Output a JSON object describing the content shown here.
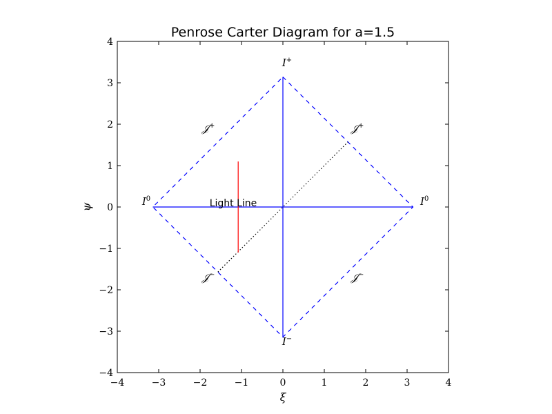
{
  "chart_data": {
    "type": "line",
    "title": "Penrose Carter Diagram for a=1.5",
    "xlabel": "ξ",
    "ylabel": "ψ",
    "xlim": [
      -4,
      4
    ],
    "ylim": [
      -4,
      4
    ],
    "xticks": [
      -4,
      -3,
      -2,
      -1,
      0,
      1,
      2,
      3,
      4
    ],
    "yticks": [
      -4,
      -3,
      -2,
      -1,
      0,
      1,
      2,
      3,
      4
    ],
    "xtick_labels": [
      "−4",
      "−3",
      "−2",
      "−1",
      "0",
      "1",
      "2",
      "3",
      "4"
    ],
    "ytick_labels": [
      "−4",
      "−3",
      "−2",
      "−1",
      "0",
      "1",
      "2",
      "3",
      "4"
    ],
    "grid": false,
    "series": [
      {
        "style": "dashed",
        "color": "#0000ff",
        "x": [
          0,
          3.14159,
          0,
          -3.14159,
          0
        ],
        "y": [
          3.14159,
          0,
          -3.14159,
          0,
          3.14159
        ]
      },
      {
        "style": "solid",
        "color": "#0000ff",
        "x": [
          -3.14159,
          3.14159
        ],
        "y": [
          0,
          0
        ]
      },
      {
        "style": "solid",
        "color": "#0000ff",
        "x": [
          0,
          0
        ],
        "y": [
          -3.14159,
          3.14159
        ]
      },
      {
        "style": "dotted",
        "color": "#000000",
        "x": [
          -1.57,
          1.57
        ],
        "y": [
          -1.57,
          1.57
        ]
      },
      {
        "style": "solid",
        "color": "#ff0000",
        "x": [
          -1.08,
          -1.08
        ],
        "y": [
          -1.1,
          1.1
        ]
      }
    ],
    "annotations": [
      {
        "label": "I",
        "sup": "+",
        "x": 0.1,
        "y": 3.4
      },
      {
        "label": "I",
        "sup": "−",
        "x": 0.1,
        "y": -3.33
      },
      {
        "label": "I",
        "sup": "0",
        "x": -3.3,
        "y": 0.05
      },
      {
        "label": "I",
        "sup": "0",
        "x": 3.42,
        "y": 0.05
      },
      {
        "label": "𝒥",
        "sup": "+",
        "x": -1.8,
        "y": 1.82
      },
      {
        "label": "𝒥",
        "sup": "+",
        "x": 1.8,
        "y": 1.82
      },
      {
        "label": "𝒥",
        "sup": "−",
        "x": -1.8,
        "y": -1.78
      },
      {
        "label": "𝒥",
        "sup": "−",
        "x": 1.8,
        "y": -1.78
      },
      {
        "label": "Light Line",
        "sup": "",
        "x": -1.2,
        "y": 0.02,
        "plain": true
      }
    ]
  }
}
